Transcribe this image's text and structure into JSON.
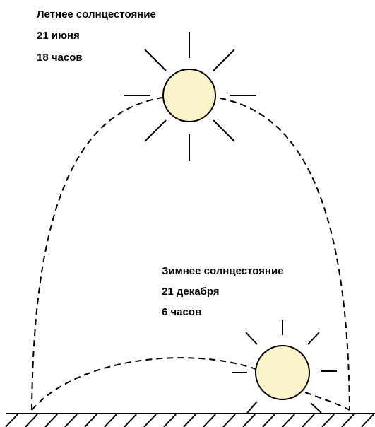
{
  "summer": {
    "title": "Летнее солнцестояние",
    "date": "21 июня",
    "time": "18 часов"
  },
  "winter": {
    "title": "Зимнее солнцестояние",
    "date": "21 декабря",
    "time": "6 часов"
  }
}
